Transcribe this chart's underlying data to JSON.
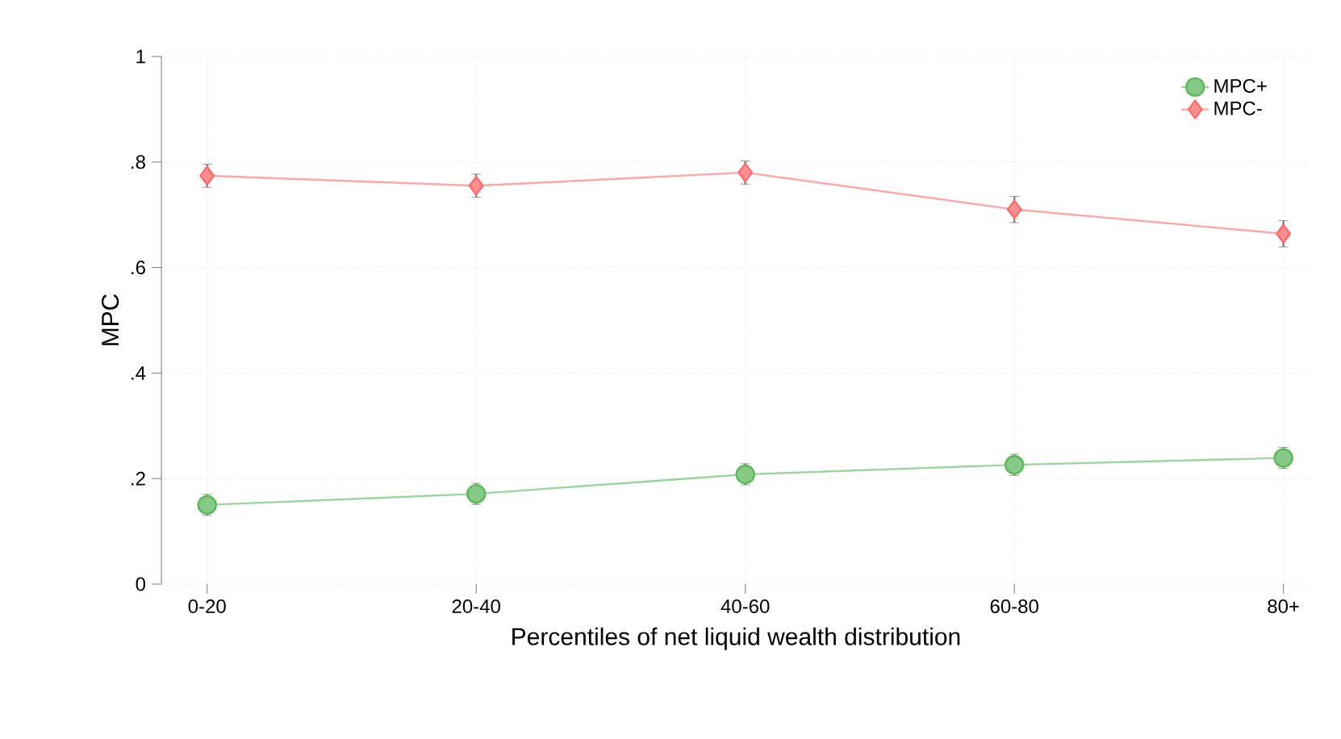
{
  "chart_data": {
    "type": "line",
    "xlabel": "Percentiles of net liquid wealth distribution",
    "ylabel": "MPC",
    "categories": [
      "0-20",
      "20-40",
      "40-60",
      "60-80",
      "80+"
    ],
    "series": [
      {
        "name": "MPC+",
        "color": "#5cb85c",
        "marker": "circle",
        "values": [
          0.15,
          0.171,
          0.208,
          0.226,
          0.239
        ],
        "errors": [
          0.02,
          0.02,
          0.02,
          0.02,
          0.02
        ]
      },
      {
        "name": "MPC-",
        "color": "#ff6a6a",
        "marker": "diamond",
        "values": [
          0.774,
          0.755,
          0.78,
          0.71,
          0.664
        ],
        "errors": [
          0.022,
          0.022,
          0.022,
          0.025,
          0.025
        ]
      }
    ],
    "ylim": [
      0,
      1
    ],
    "yticks": [
      0,
      {
        "value": 0.2,
        "label": ".2"
      },
      {
        "value": 0.4,
        "label": ".4"
      },
      {
        "value": 0.6,
        "label": ".6"
      },
      {
        "value": 0.8,
        "label": ".8"
      },
      1
    ],
    "grid": true,
    "legend": "top right",
    "line_style": "solid"
  }
}
